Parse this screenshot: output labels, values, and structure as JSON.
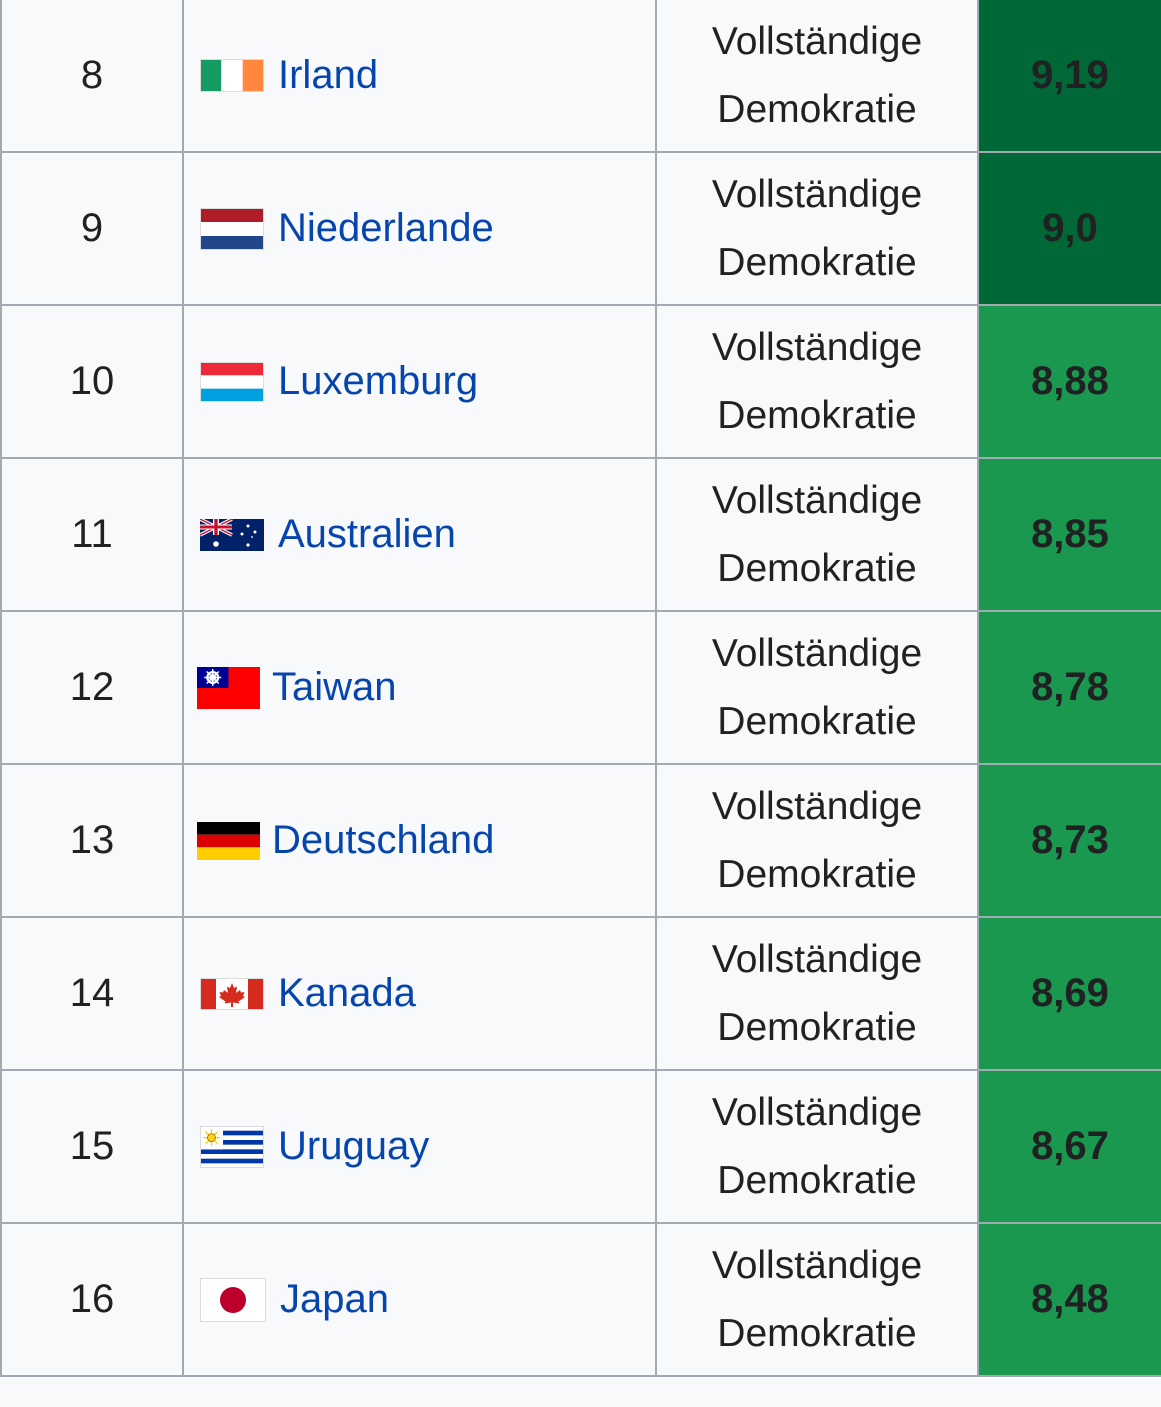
{
  "colors": {
    "score_dark": "#006837",
    "score_medium": "#1a9850",
    "link": "#0645ad",
    "border": "#a2a9b1",
    "cell_bg": "#f8f9fa"
  },
  "rows": [
    {
      "rank": "8",
      "country": "Irland",
      "flag_icon": "ireland-flag-icon",
      "category_line1": "Vollständige",
      "category_line2": "Demokratie",
      "score": "9,19",
      "score_color": "#006837"
    },
    {
      "rank": "9",
      "country": "Niederlande",
      "flag_icon": "netherlands-flag-icon",
      "category_line1": "Vollständige",
      "category_line2": "Demokratie",
      "score": "9,0",
      "score_color": "#006837"
    },
    {
      "rank": "10",
      "country": "Luxemburg",
      "flag_icon": "luxembourg-flag-icon",
      "category_line1": "Vollständige",
      "category_line2": "Demokratie",
      "score": "8,88",
      "score_color": "#1a9850"
    },
    {
      "rank": "11",
      "country": "Australien",
      "flag_icon": "australia-flag-icon",
      "category_line1": "Vollständige",
      "category_line2": "Demokratie",
      "score": "8,85",
      "score_color": "#1a9850"
    },
    {
      "rank": "12",
      "country": "Taiwan",
      "flag_icon": "taiwan-flag-icon",
      "category_line1": "Vollständige",
      "category_line2": "Demokratie",
      "score": "8,78",
      "score_color": "#1a9850"
    },
    {
      "rank": "13",
      "country": "Deutschland",
      "flag_icon": "germany-flag-icon",
      "category_line1": "Vollständige",
      "category_line2": "Demokratie",
      "score": "8,73",
      "score_color": "#1a9850"
    },
    {
      "rank": "14",
      "country": "Kanada",
      "flag_icon": "canada-flag-icon",
      "category_line1": "Vollständige",
      "category_line2": "Demokratie",
      "score": "8,69",
      "score_color": "#1a9850"
    },
    {
      "rank": "15",
      "country": "Uruguay",
      "flag_icon": "uruguay-flag-icon",
      "category_line1": "Vollständige",
      "category_line2": "Demokratie",
      "score": "8,67",
      "score_color": "#1a9850"
    },
    {
      "rank": "16",
      "country": "Japan",
      "flag_icon": "japan-flag-icon",
      "category_line1": "Vollständige",
      "category_line2": "Demokratie",
      "score": "8,48",
      "score_color": "#1a9850"
    }
  ]
}
